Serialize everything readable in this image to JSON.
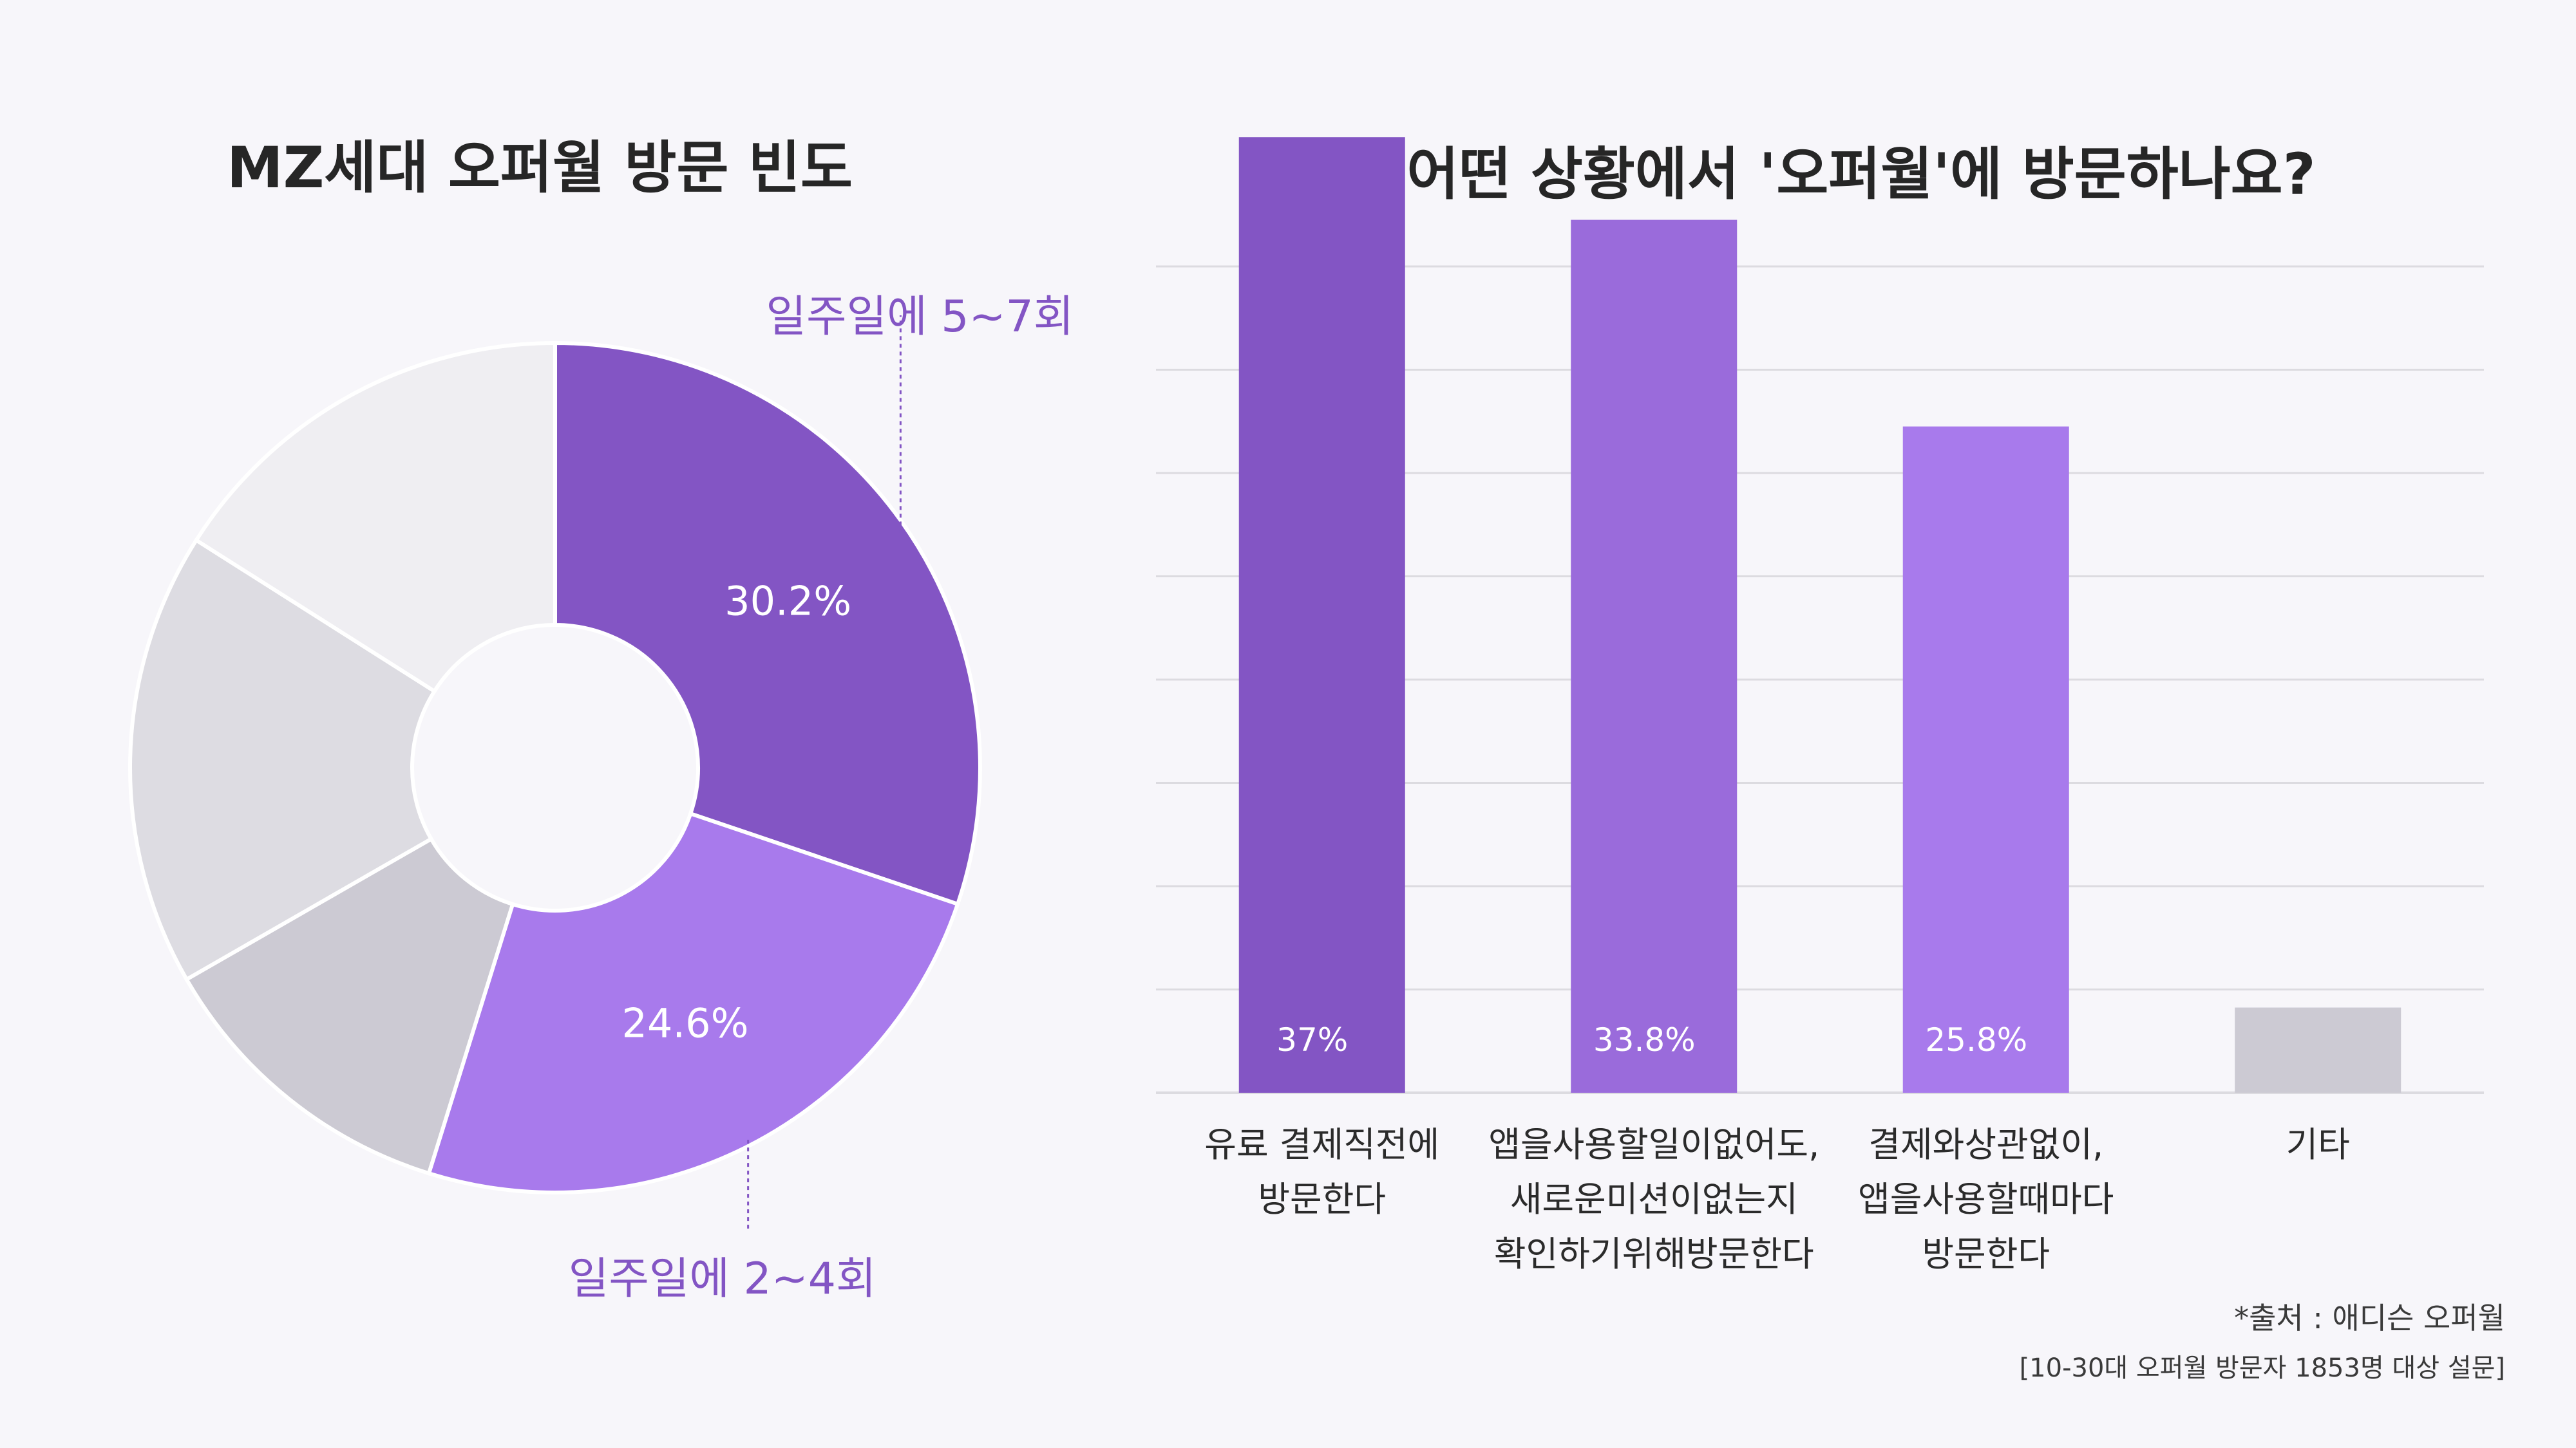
{
  "colors": {
    "background": "#f7f6fa",
    "purple_dark": "#8355c4",
    "purple_mid": "#9a6bdb",
    "purple_light": "#a87aec",
    "gray_1": "#efeef2",
    "gray_2": "#dddce2",
    "gray_3": "#cccad3",
    "callout": "#8355c4",
    "gridline": "#dcdbe0"
  },
  "chart_data": [
    {
      "type": "pie",
      "title": "MZ세대 오퍼월 방문 빈도",
      "donut": true,
      "slices": [
        {
          "label": "일주일에 5~7회",
          "value": 30.2,
          "value_label": "30.2%",
          "color": "#8355c4",
          "callout": "일주일에 5~7회"
        },
        {
          "label": "일주일에 2~4회",
          "value": 24.6,
          "value_label": "24.6%",
          "color": "#a87aec",
          "callout": "일주일에 2~4회"
        },
        {
          "label": "",
          "value": 11.9,
          "value_label": "",
          "color": "#cccad3",
          "callout": ""
        },
        {
          "label": "",
          "value": 17.3,
          "value_label": "",
          "color": "#dddce2",
          "callout": ""
        },
        {
          "label": "",
          "value": 16.0,
          "value_label": "",
          "color": "#efeef2",
          "callout": ""
        }
      ]
    },
    {
      "type": "bar",
      "title": "어떤 상황에서 '오퍼월'에 방문하나요?",
      "categories": [
        [
          "유료 결제직전에",
          "방문한다"
        ],
        [
          "앱을사용할일이없어도,",
          "새로운미션이없는지",
          "확인하기위해방문한다"
        ],
        [
          "결제와상관없이,",
          "앱을사용할때마다",
          "방문한다"
        ],
        [
          "기타"
        ]
      ],
      "values": [
        37,
        33.8,
        25.8,
        3.3
      ],
      "value_labels": [
        "37%",
        "33.8%",
        "25.8%",
        ""
      ],
      "bar_colors": [
        "#8355c4",
        "#9a6bdb",
        "#a87aec",
        "#cccad3"
      ],
      "ylim": [
        0,
        40
      ],
      "grid": true
    }
  ],
  "footnotes": {
    "source": "*출처 : 애디슨 오퍼월",
    "survey": "[10-30대 오퍼월 방문자 1853명 대상 설문]"
  }
}
